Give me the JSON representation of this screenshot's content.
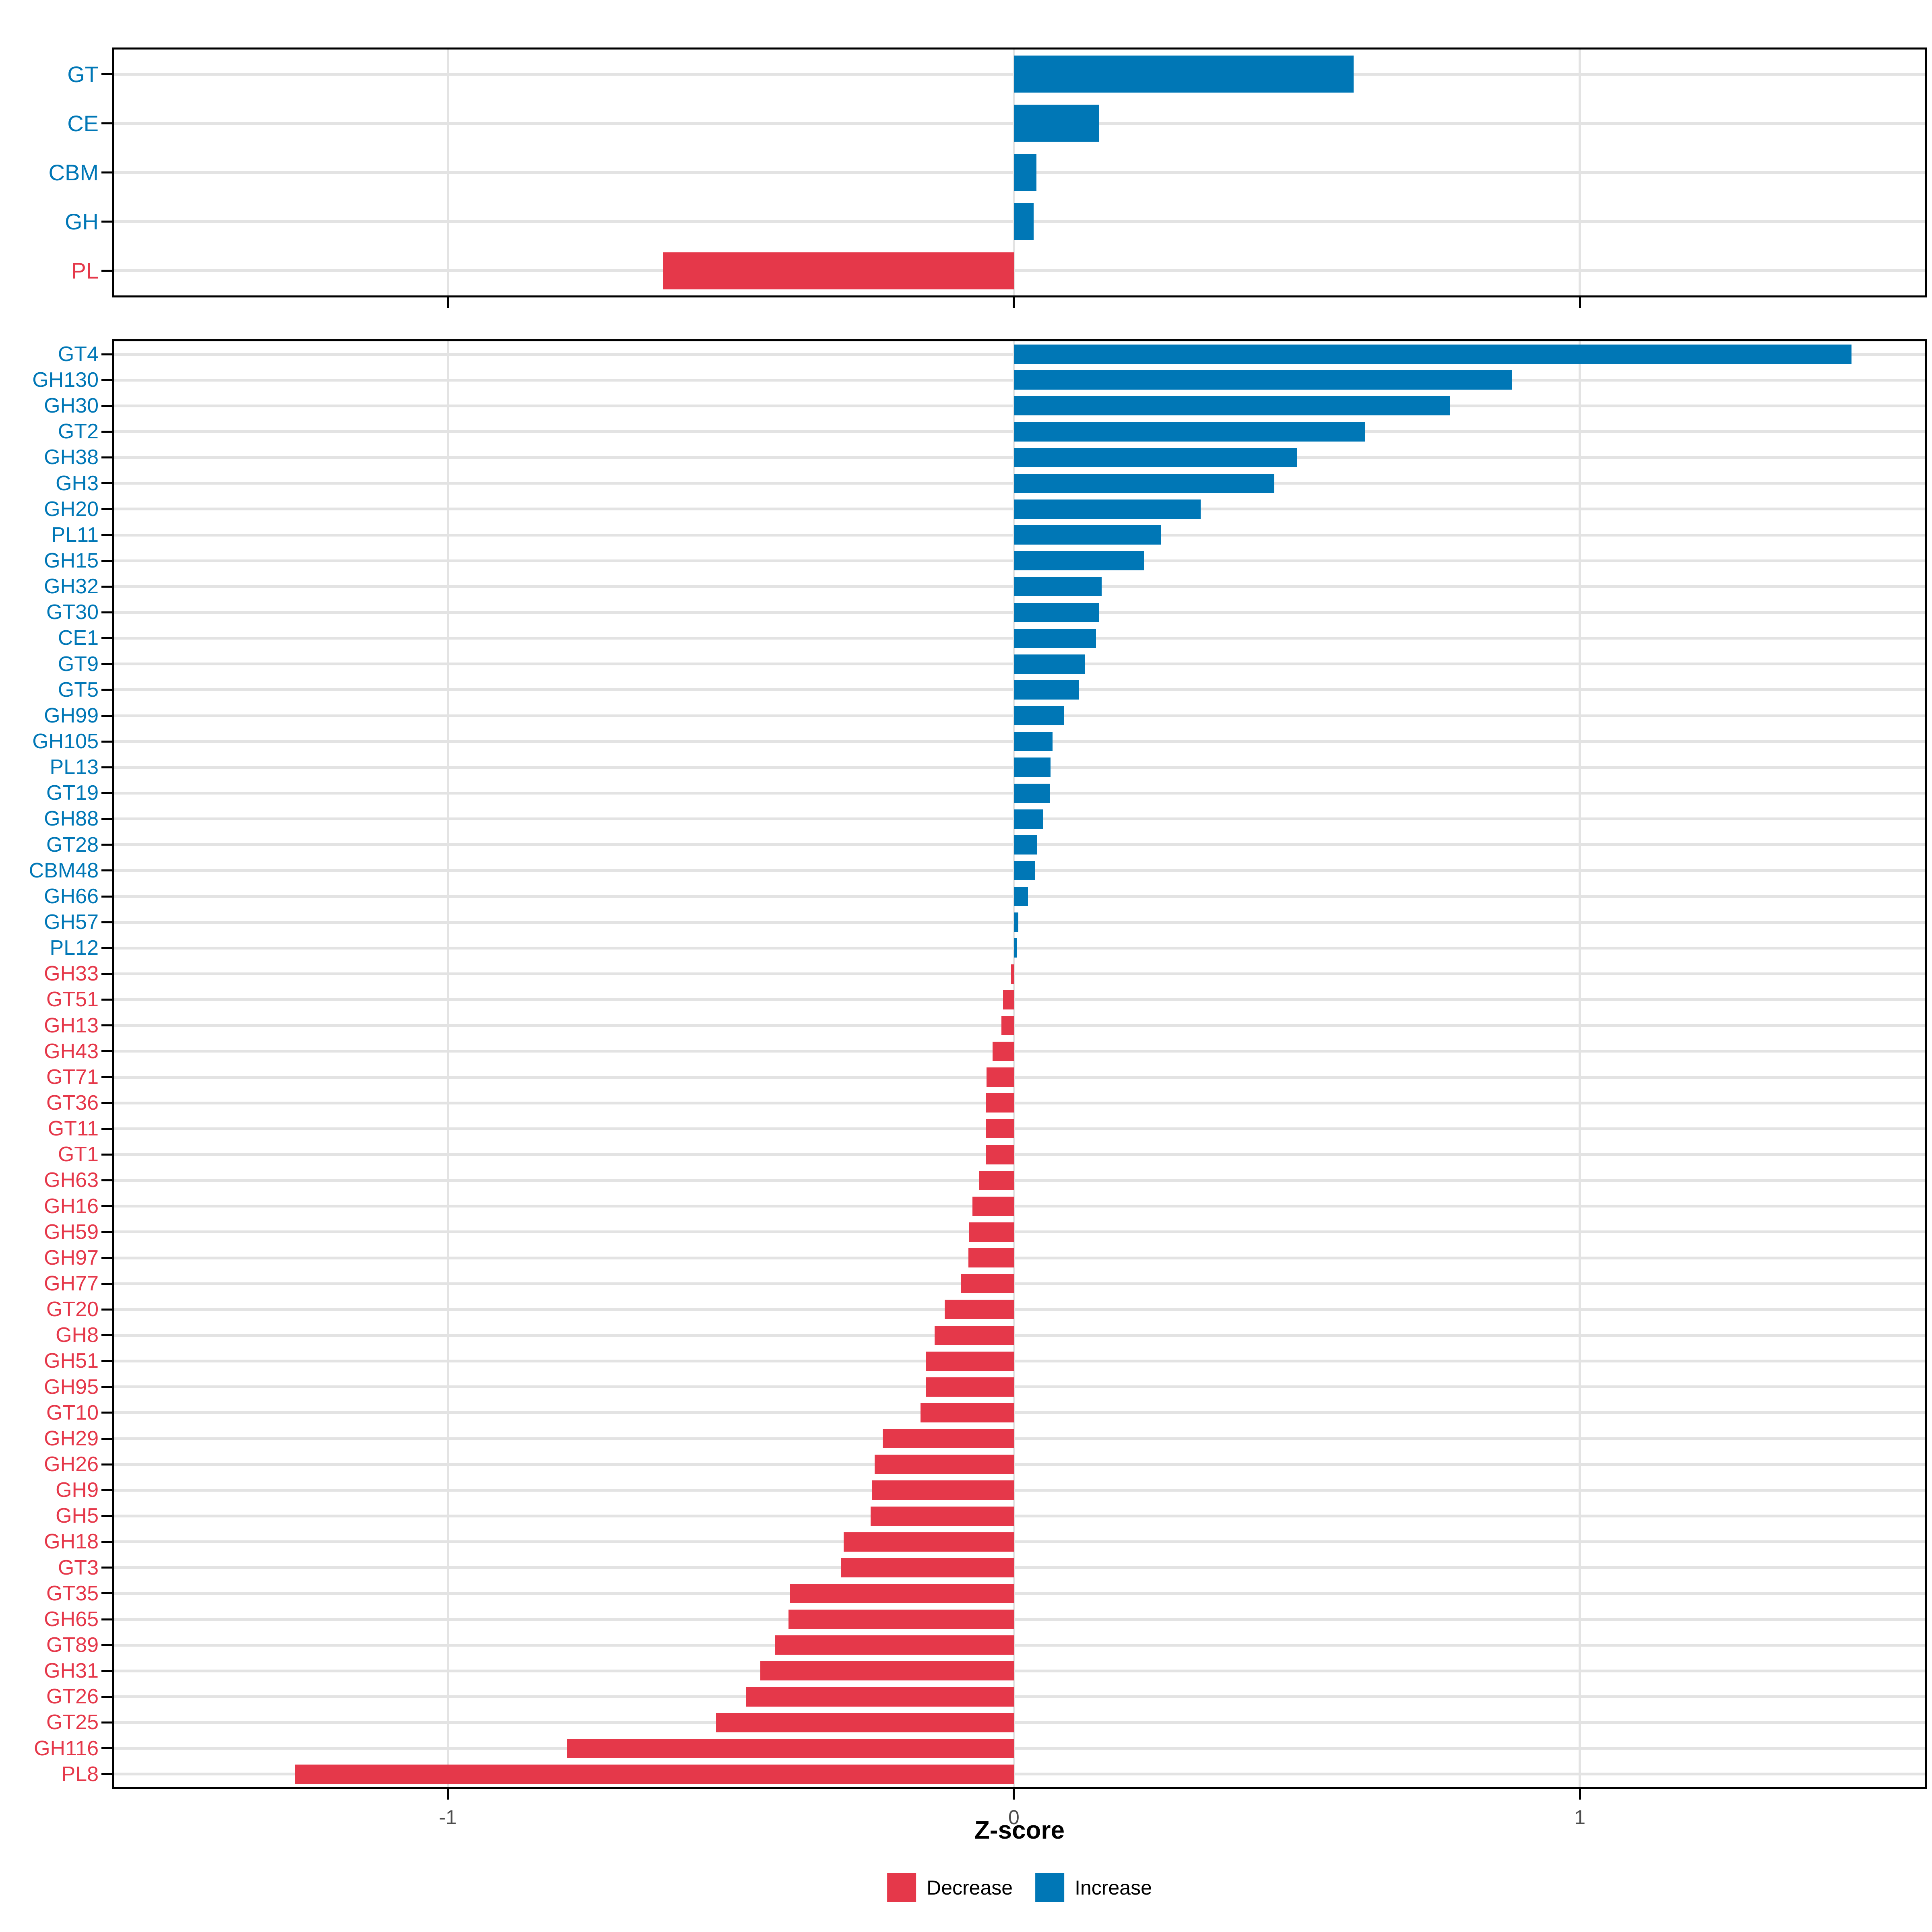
{
  "axis": {
    "label": "Z-score",
    "tick_values": [
      -1,
      0,
      1
    ],
    "tick_labels": [
      "-1",
      "0",
      "1"
    ],
    "xlim": [
      -1.59,
      1.61
    ]
  },
  "legend": {
    "decrease_label": "Decrease",
    "increase_label": "Increase"
  },
  "colors": {
    "increase": "#0077B6",
    "decrease": "#E5384A",
    "grid": "#E3E3E3",
    "tick_text": "#4D4D4D",
    "panel_border": "#000000"
  },
  "chart_data": [
    {
      "type": "bar",
      "orientation": "horizontal",
      "panel": "cazyme-class",
      "xlabel": "Z-score",
      "xlim": [
        -1.59,
        1.61
      ],
      "grid": true,
      "legend_position": "bottom",
      "categories": [
        "GT",
        "CE",
        "CBM",
        "GH",
        "PL"
      ],
      "values": [
        0.6,
        0.15,
        0.04,
        0.035,
        -0.62
      ]
    },
    {
      "type": "bar",
      "orientation": "horizontal",
      "panel": "cazyme-family",
      "xlabel": "Z-score",
      "xlim": [
        -1.59,
        1.61
      ],
      "grid": true,
      "legend_position": "bottom",
      "categories": [
        "GT4",
        "GH130",
        "GH30",
        "GT2",
        "GH38",
        "GH3",
        "GH20",
        "PL11",
        "GH15",
        "GH32",
        "GT30",
        "CE1",
        "GT9",
        "GT5",
        "GH99",
        "GH105",
        "PL13",
        "GT19",
        "GH88",
        "GT28",
        "CBM48",
        "GH66",
        "GH57",
        "PL12",
        "GH33",
        "GT51",
        "GH13",
        "GH43",
        "GT71",
        "GT36",
        "GT11",
        "GT1",
        "GH63",
        "GH16",
        "GH59",
        "GH97",
        "GH77",
        "GT20",
        "GH8",
        "GH51",
        "GH95",
        "GT10",
        "GH29",
        "GH26",
        "GH9",
        "GH5",
        "GH18",
        "GT3",
        "GT35",
        "GH65",
        "GT89",
        "GH31",
        "GT26",
        "GT25",
        "GH116",
        "PL8"
      ],
      "values": [
        1.48,
        0.88,
        0.77,
        0.62,
        0.5,
        0.46,
        0.33,
        0.26,
        0.23,
        0.155,
        0.15,
        0.145,
        0.125,
        0.115,
        0.088,
        0.068,
        0.065,
        0.063,
        0.051,
        0.041,
        0.038,
        0.025,
        0.008,
        0.006,
        -0.005,
        -0.019,
        -0.022,
        -0.038,
        -0.048,
        -0.049,
        -0.049,
        -0.05,
        -0.061,
        -0.073,
        -0.079,
        -0.08,
        -0.093,
        -0.122,
        -0.14,
        -0.155,
        -0.156,
        -0.165,
        -0.232,
        -0.246,
        -0.25,
        -0.253,
        -0.301,
        -0.306,
        -0.396,
        -0.398,
        -0.422,
        -0.448,
        -0.473,
        -0.526,
        -0.79,
        -1.27
      ]
    }
  ]
}
